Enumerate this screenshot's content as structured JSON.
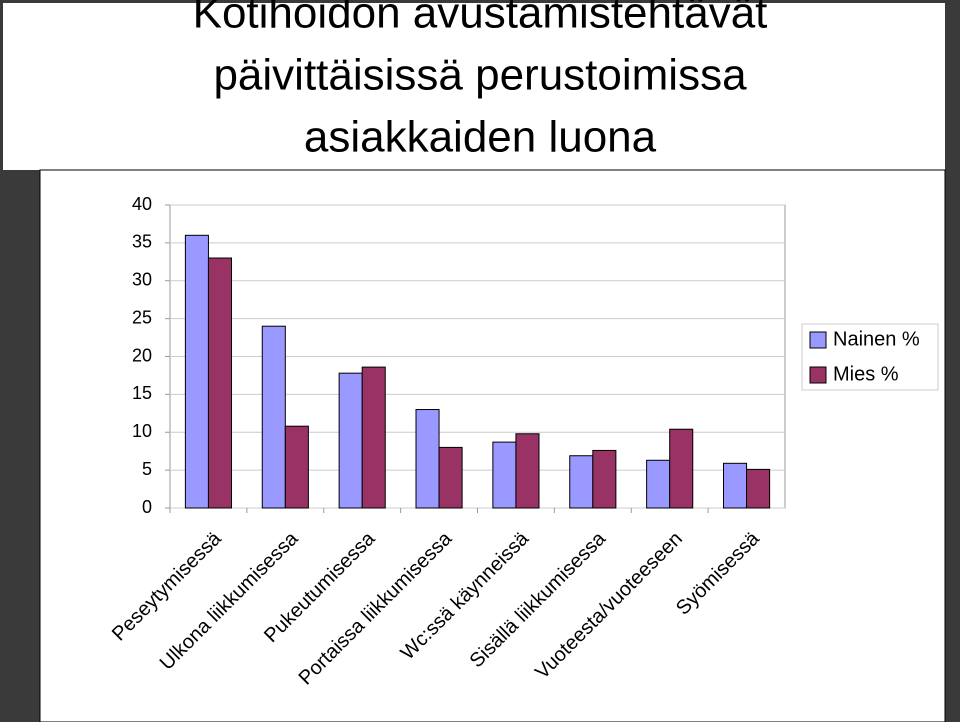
{
  "chart_data": {
    "type": "bar",
    "title": [
      "Kotihoidon avustamistehtävät",
      "päivittäisissä perustoimissa",
      "asiakkaiden luona"
    ],
    "categories": [
      "Peseytymisessä",
      "Ulkona liikkumisessa",
      "Pukeutumisessa",
      "Portaissa liikkumisessa",
      "Wc:ssä käynneissä",
      "Sisällä liikkumisessa",
      "Vuoteesta/vuoteeseen",
      "Syömisessä"
    ],
    "series": [
      {
        "name": "Nainen %",
        "color": "#9999ff",
        "values": [
          36,
          24,
          17.8,
          13,
          8.7,
          6.9,
          6.3,
          5.9
        ]
      },
      {
        "name": "Mies %",
        "color": "#993366",
        "values": [
          33,
          10.8,
          18.6,
          8,
          9.8,
          7.6,
          10.4,
          5.1
        ]
      }
    ],
    "ylim": [
      0,
      40
    ],
    "yticks": [
      0,
      5,
      10,
      15,
      20,
      25,
      30,
      35,
      40
    ],
    "grid": true,
    "legend": "right"
  }
}
